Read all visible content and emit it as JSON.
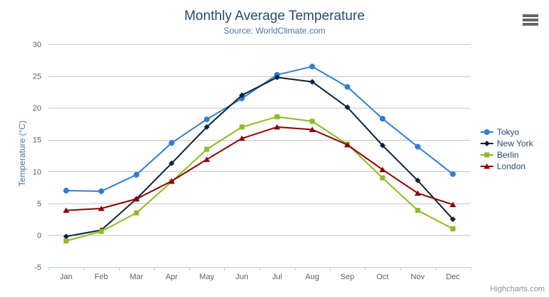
{
  "header": {
    "title": "Monthly Average Temperature",
    "subtitle": "Source: WorldClimate.com"
  },
  "credits": "Highcharts.com",
  "export_menu": {
    "icon": "hamburger-icon"
  },
  "chart_data": {
    "type": "line",
    "title": "Monthly Average Temperature",
    "subtitle": "Source: WorldClimate.com",
    "categories": [
      "Jan",
      "Feb",
      "Mar",
      "Apr",
      "May",
      "Jun",
      "Jul",
      "Aug",
      "Sep",
      "Oct",
      "Nov",
      "Dec"
    ],
    "series": [
      {
        "name": "Tokyo",
        "color": "#2f7ed8",
        "marker": "circle",
        "values": [
          7.0,
          6.9,
          9.5,
          14.5,
          18.2,
          21.5,
          25.2,
          26.5,
          23.3,
          18.3,
          13.9,
          9.6
        ]
      },
      {
        "name": "New York",
        "color": "#0d233a",
        "marker": "diamond",
        "values": [
          -0.2,
          0.8,
          5.7,
          11.3,
          17.0,
          22.0,
          24.8,
          24.1,
          20.1,
          14.1,
          8.6,
          2.5
        ]
      },
      {
        "name": "Berlin",
        "color": "#8bbc21",
        "marker": "square",
        "values": [
          -0.9,
          0.6,
          3.5,
          8.4,
          13.5,
          17.0,
          18.6,
          17.9,
          14.3,
          9.0,
          3.9,
          1.0
        ]
      },
      {
        "name": "London",
        "color": "#910000",
        "marker": "triangle",
        "values": [
          3.9,
          4.2,
          5.7,
          8.5,
          11.9,
          15.2,
          17.0,
          16.6,
          14.2,
          10.3,
          6.6,
          4.8
        ]
      }
    ],
    "xlabel": "",
    "ylabel": "Temperature (°C)",
    "ylim": [
      -5,
      30
    ],
    "ytick_interval": 5,
    "yticks": [
      -5,
      0,
      5,
      10,
      15,
      20,
      25,
      30
    ],
    "grid": true,
    "legend_position": "right"
  },
  "colors": {
    "title": "#274b6d",
    "subtitle": "#4d759e",
    "axis_label": "#606060",
    "axis_title": "#4d759e",
    "gridline": "#c8c8c8",
    "axis_line": "#c0d0e0",
    "legend_text": "#274b6d",
    "credits": "#909090",
    "menu_icon": "#666666",
    "background": "#ffffff"
  }
}
